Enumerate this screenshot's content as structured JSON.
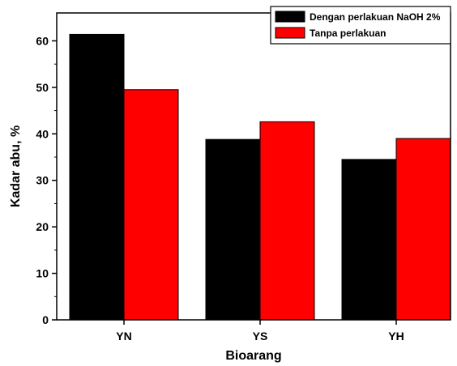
{
  "chart_data": {
    "type": "bar",
    "categories": [
      "YN",
      "YS",
      "YH"
    ],
    "series": [
      {
        "name": "Dengan perlakuan NaOH 2%",
        "values": [
          61.4,
          38.8,
          34.5
        ],
        "color": "#000000"
      },
      {
        "name": "Tanpa perlakuan",
        "values": [
          49.5,
          42.6,
          39.0
        ],
        "color": "#ff0000"
      }
    ],
    "xlabel": "Bioarang",
    "ylabel": "Kadar abu, %",
    "ylim": [
      0,
      66
    ],
    "yticks": [
      "0",
      "10",
      "20",
      "30",
      "40",
      "50",
      "60"
    ],
    "grid": false,
    "legend_position": "top-right"
  }
}
